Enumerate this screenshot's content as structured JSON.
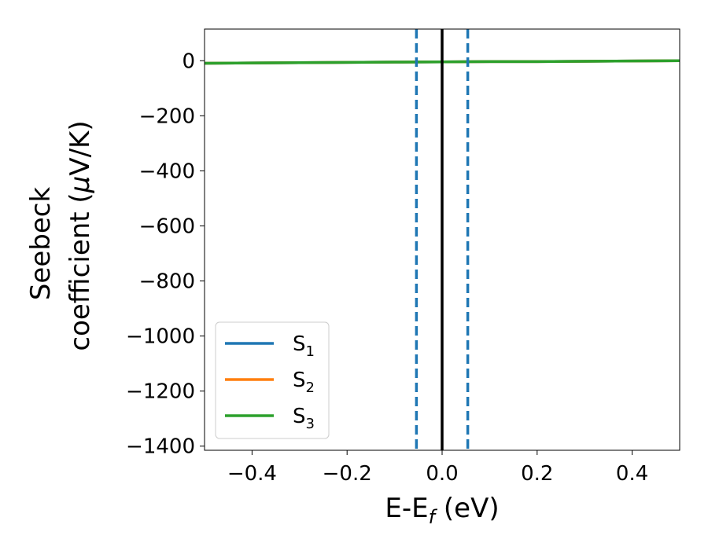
{
  "chart_data": {
    "type": "line",
    "xlabel": "E-E",
    "xlabel_sub": "f",
    "xlabel_unit": " (eV)",
    "ylabel_line1": "Seebeck",
    "ylabel_line2": "coefficient  (",
    "ylabel_mu": "μ",
    "ylabel_unit": "V/K)",
    "xlim": [
      -0.5,
      0.5
    ],
    "ylim": [
      -1415,
      115
    ],
    "x_ticks": [
      -0.4,
      -0.2,
      0.0,
      0.2,
      0.4
    ],
    "x_tick_labels": [
      "−0.4",
      "−0.2",
      "0.0",
      "0.2",
      "0.4"
    ],
    "y_ticks": [
      0,
      -200,
      -400,
      -600,
      -800,
      -1000,
      -1200,
      -1400
    ],
    "y_tick_labels": [
      "0",
      "−200",
      "−400",
      "−600",
      "−800",
      "−1000",
      "−1200",
      "−1400"
    ],
    "grid": false,
    "legend_position": "lower-left",
    "series": [
      {
        "name": "S",
        "sub": "1",
        "color": "#1f77b4",
        "x": [
          -0.5,
          -0.4,
          -0.3,
          -0.2,
          -0.1,
          0.0,
          0.1,
          0.2,
          0.3,
          0.4,
          0.5
        ],
        "y": [
          -9,
          -8,
          -7,
          -6,
          -5,
          -4,
          -3,
          -3,
          -2,
          -1,
          0
        ]
      },
      {
        "name": "S",
        "sub": "2",
        "color": "#ff7f0e",
        "x": [
          -0.5,
          -0.4,
          -0.3,
          -0.2,
          -0.1,
          0.0,
          0.1,
          0.2,
          0.3,
          0.4,
          0.5
        ],
        "y": [
          -9,
          -8,
          -7,
          -6,
          -5,
          -4,
          -3,
          -3,
          -2,
          -1,
          0
        ]
      },
      {
        "name": "S",
        "sub": "3",
        "color": "#2ca02c",
        "x": [
          -0.5,
          -0.4,
          -0.3,
          -0.2,
          -0.1,
          0.0,
          0.1,
          0.2,
          0.3,
          0.4,
          0.5
        ],
        "y": [
          -9,
          -8,
          -7,
          -6,
          -5,
          -4,
          -3,
          -3,
          -2,
          -1,
          0
        ]
      }
    ],
    "vertical_lines": [
      {
        "x": 0.0,
        "style": "solid",
        "color": "#000000"
      },
      {
        "x": -0.054,
        "style": "dashed",
        "color": "#1f77b4"
      },
      {
        "x": 0.054,
        "style": "dashed",
        "color": "#1f77b4"
      }
    ]
  }
}
